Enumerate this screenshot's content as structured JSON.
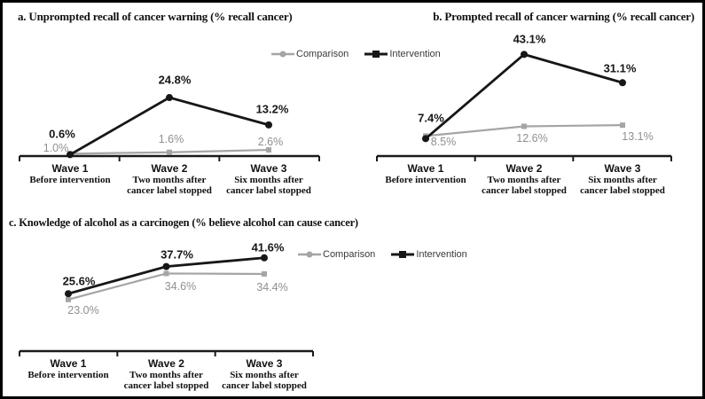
{
  "colors": {
    "comparison": "#a5a5a5",
    "intervention": "#171717",
    "comparison_label_text": "#8f8f8f",
    "axis": "#1a1a1a",
    "background": "#ffffff",
    "border": "#000000"
  },
  "legend": {
    "comparison_label": "Comparison",
    "intervention_label": "Intervention"
  },
  "x_axis": {
    "categories": [
      {
        "wave": "Wave 1",
        "desc_lines": [
          "Before intervention"
        ]
      },
      {
        "wave": "Wave 2",
        "desc_lines": [
          "Two months after",
          "cancer label stopped"
        ]
      },
      {
        "wave": "Wave 3",
        "desc_lines": [
          "Six months after",
          "cancer label stopped"
        ]
      }
    ]
  },
  "chart_data": [
    {
      "id": "a",
      "type": "line",
      "title": "a. Unprompted recall of cancer warning (% recall cancer)",
      "categories": [
        "Wave 1 (Before intervention)",
        "Wave 2 (Two months after cancer label stopped)",
        "Wave 3 (Six months after cancer label stopped)"
      ],
      "series": [
        {
          "name": "Comparison",
          "values": [
            1.0,
            1.6,
            2.6
          ],
          "labels": [
            "1.0%",
            "1.6%",
            "2.6%"
          ]
        },
        {
          "name": "Intervention",
          "values": [
            0.6,
            24.8,
            13.2
          ],
          "labels": [
            "0.6%",
            "24.8%",
            "13.2%"
          ]
        }
      ],
      "ylim": [
        0,
        45
      ],
      "grid": false,
      "legend_position": "top-right-shared-with-b"
    },
    {
      "id": "b",
      "type": "line",
      "title": "b. Prompted recall of cancer warning (% recall cancer)",
      "categories": [
        "Wave 1 (Before intervention)",
        "Wave 2 (Two months after cancer label stopped)",
        "Wave 3 (Six months after cancer label stopped)"
      ],
      "series": [
        {
          "name": "Comparison",
          "values": [
            8.5,
            12.6,
            13.1
          ],
          "labels": [
            "8.5%",
            "12.6%",
            "13.1%"
          ]
        },
        {
          "name": "Intervention",
          "values": [
            7.4,
            43.1,
            31.1
          ],
          "labels": [
            "7.4%",
            "43.1%",
            "31.1%"
          ]
        }
      ],
      "ylim": [
        0,
        45
      ],
      "grid": false,
      "legend_position": "shared-with-a"
    },
    {
      "id": "c",
      "type": "line",
      "title": "c. Knowledge of alcohol as a carcinogen (% believe alcohol can cause cancer)",
      "categories": [
        "Wave 1 (Before intervention)",
        "Wave 2 (Two months after cancer label stopped)",
        "Wave 3 (Six months after cancer label stopped)"
      ],
      "series": [
        {
          "name": "Comparison",
          "values": [
            23.0,
            34.6,
            34.4
          ],
          "labels": [
            "23.0%",
            "34.6%",
            "34.4%"
          ]
        },
        {
          "name": "Intervention",
          "values": [
            25.6,
            37.7,
            41.6
          ],
          "labels": [
            "25.6%",
            "37.7%",
            "41.6%"
          ]
        }
      ],
      "ylim": [
        0,
        50
      ],
      "grid": false,
      "legend_position": "right-of-plot"
    }
  ]
}
